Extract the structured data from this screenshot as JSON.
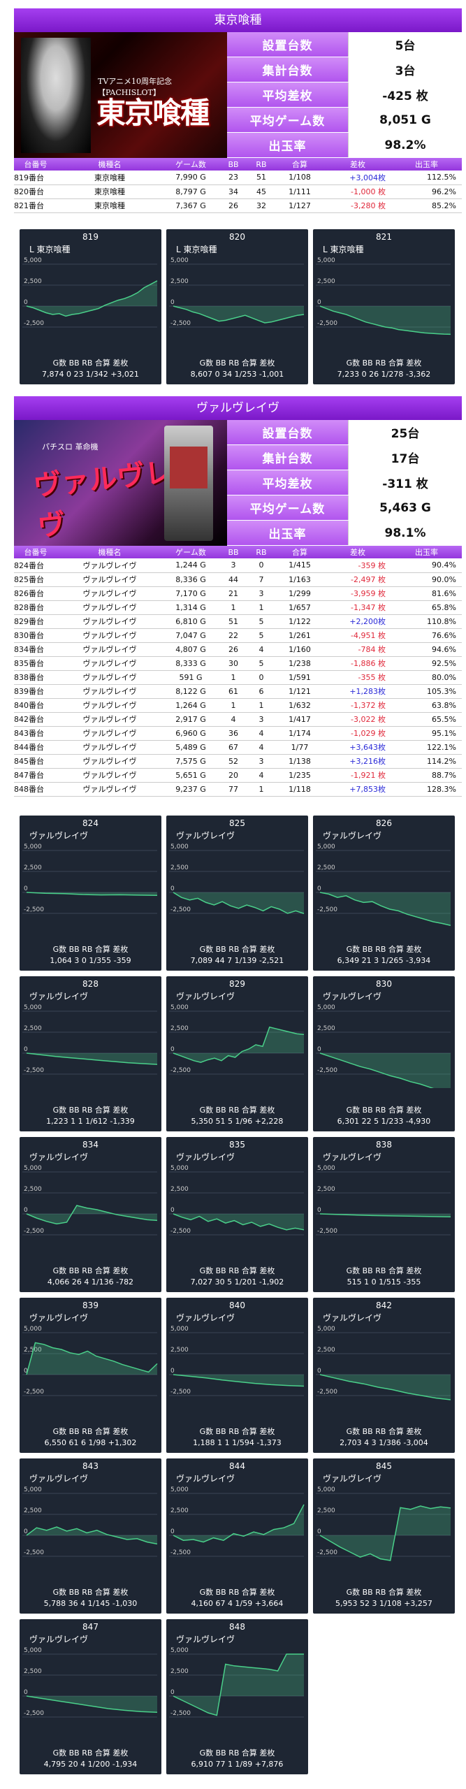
{
  "sections": [
    {
      "title": "東京喰種",
      "banner_caption": "TVアニメ10周年記念 【PACHISLOT】",
      "banner_logo": "東京喰種",
      "stats": [
        {
          "label": "設置台数",
          "value": "5台"
        },
        {
          "label": "集計台数",
          "value": "3台"
        },
        {
          "label": "平均差枚",
          "value": "-425 枚"
        },
        {
          "label": "平均ゲーム数",
          "value": "8,051 G"
        },
        {
          "label": "出玉率",
          "value": "98.2%"
        }
      ],
      "columns": [
        "台番号",
        "機種名",
        "ゲーム数",
        "BB",
        "RB",
        "合算",
        "差枚",
        "出玉率"
      ],
      "rows": [
        [
          "819番台",
          "東京喰種",
          "7,990 G",
          "23",
          "51",
          "1/108",
          "+3,004枚",
          "112.5%"
        ],
        [
          "820番台",
          "東京喰種",
          "8,797 G",
          "34",
          "45",
          "1/111",
          "-1,000 枚",
          "96.2%"
        ],
        [
          "821番台",
          "東京喰種",
          "7,367 G",
          "26",
          "32",
          "1/127",
          "-3,280 枚",
          "85.2%"
        ]
      ],
      "cards": [
        {
          "num": "819",
          "name": "L 東京喰種",
          "foot1": "G数  BB  RB   合算    差枚",
          "foot2": "7,874  0  23 1/342 +3,021",
          "series": [
            0,
            -200,
            -500,
            -800,
            -1000,
            -900,
            -1200,
            -1000,
            -900,
            -700,
            -500,
            -300,
            100,
            400,
            700,
            900,
            1200,
            1600,
            2200,
            2600,
            3021
          ]
        },
        {
          "num": "820",
          "name": "L 東京喰種",
          "foot1": "G数  BB  RB   合算    差枚",
          "foot2": "8,607  0  34 1/253 -1,001",
          "series": [
            0,
            -200,
            -400,
            -700,
            -900,
            -1200,
            -1500,
            -1800,
            -1700,
            -1500,
            -1300,
            -1100,
            -1400,
            -1700,
            -2000,
            -1900,
            -1700,
            -1500,
            -1300,
            -1100,
            -1001
          ]
        },
        {
          "num": "821",
          "name": "L 東京喰種",
          "foot1": "G数  BB  RB   合算    差枚",
          "foot2": "7,233  0  26 1/278 -3,362",
          "series": [
            0,
            -300,
            -600,
            -800,
            -1000,
            -1300,
            -1600,
            -1900,
            -2100,
            -2300,
            -2500,
            -2600,
            -2800,
            -2900,
            -3000,
            -3100,
            -3200,
            -3250,
            -3300,
            -3340,
            -3362
          ]
        }
      ]
    },
    {
      "title": "ヴァルヴレイヴ",
      "banner_caption": "パチスロ 革命機",
      "banner_logo": "ヴァルヴレイヴ",
      "stats": [
        {
          "label": "設置台数",
          "value": "25台"
        },
        {
          "label": "集計台数",
          "value": "17台"
        },
        {
          "label": "平均差枚",
          "value": "-311 枚"
        },
        {
          "label": "平均ゲーム数",
          "value": "5,463 G"
        },
        {
          "label": "出玉率",
          "value": "98.1%"
        }
      ],
      "columns": [
        "台番号",
        "機種名",
        "ゲーム数",
        "BB",
        "RB",
        "合算",
        "差枚",
        "出玉率"
      ],
      "rows": [
        [
          "824番台",
          "ヴァルヴレイヴ",
          "1,244 G",
          "3",
          "0",
          "1/415",
          "-359 枚",
          "90.4%"
        ],
        [
          "825番台",
          "ヴァルヴレイヴ",
          "8,336 G",
          "44",
          "7",
          "1/163",
          "-2,497 枚",
          "90.0%"
        ],
        [
          "826番台",
          "ヴァルヴレイヴ",
          "7,170 G",
          "21",
          "3",
          "1/299",
          "-3,959 枚",
          "81.6%"
        ],
        [
          "828番台",
          "ヴァルヴレイヴ",
          "1,314 G",
          "1",
          "1",
          "1/657",
          "-1,347 枚",
          "65.8%"
        ],
        [
          "829番台",
          "ヴァルヴレイヴ",
          "6,810 G",
          "51",
          "5",
          "1/122",
          "+2,200枚",
          "110.8%"
        ],
        [
          "830番台",
          "ヴァルヴレイヴ",
          "7,047 G",
          "22",
          "5",
          "1/261",
          "-4,951 枚",
          "76.6%"
        ],
        [
          "834番台",
          "ヴァルヴレイヴ",
          "4,807 G",
          "26",
          "4",
          "1/160",
          "-784 枚",
          "94.6%"
        ],
        [
          "835番台",
          "ヴァルヴレイヴ",
          "8,333 G",
          "30",
          "5",
          "1/238",
          "-1,886 枚",
          "92.5%"
        ],
        [
          "838番台",
          "ヴァルヴレイヴ",
          "591 G",
          "1",
          "0",
          "1/591",
          "-355 枚",
          "80.0%"
        ],
        [
          "839番台",
          "ヴァルヴレイヴ",
          "8,122 G",
          "61",
          "6",
          "1/121",
          "+1,283枚",
          "105.3%"
        ],
        [
          "840番台",
          "ヴァルヴレイヴ",
          "1,264 G",
          "1",
          "1",
          "1/632",
          "-1,372 枚",
          "63.8%"
        ],
        [
          "842番台",
          "ヴァルヴレイヴ",
          "2,917 G",
          "4",
          "3",
          "1/417",
          "-3,022 枚",
          "65.5%"
        ],
        [
          "843番台",
          "ヴァルヴレイヴ",
          "6,960 G",
          "36",
          "4",
          "1/174",
          "-1,029 枚",
          "95.1%"
        ],
        [
          "844番台",
          "ヴァルヴレイヴ",
          "5,489 G",
          "67",
          "4",
          "1/77",
          "+3,643枚",
          "122.1%"
        ],
        [
          "845番台",
          "ヴァルヴレイヴ",
          "7,575 G",
          "52",
          "3",
          "1/138",
          "+3,216枚",
          "114.2%"
        ],
        [
          "847番台",
          "ヴァルヴレイヴ",
          "5,651 G",
          "20",
          "4",
          "1/235",
          "-1,921 枚",
          "88.7%"
        ],
        [
          "848番台",
          "ヴァルヴレイヴ",
          "9,237 G",
          "77",
          "1",
          "1/118",
          "+7,853枚",
          "128.3%"
        ]
      ],
      "cards": [
        {
          "num": "824",
          "name": "ヴァルヴレイヴ",
          "foot1": "G数  BB  RB   合算    差枚",
          "foot2": "1,064  3  0 1/355 -359",
          "series": [
            0,
            -100,
            -150,
            -250,
            -300,
            -280,
            -320,
            -359
          ]
        },
        {
          "num": "825",
          "name": "ヴァルヴレイヴ",
          "foot1": "G数  BB  RB   合算    差枚",
          "foot2": "7,089  44  7 1/139 -2,521",
          "series": [
            0,
            -600,
            -900,
            -700,
            -1200,
            -1500,
            -1100,
            -1600,
            -1900,
            -1500,
            -1800,
            -2200,
            -1700,
            -2000,
            -2500,
            -2200,
            -2521
          ]
        },
        {
          "num": "826",
          "name": "ヴァルヴレイヴ",
          "foot1": "G数  BB  RB   合算    差枚",
          "foot2": "6,349  21  3 1/265 -3,934",
          "series": [
            0,
            -200,
            -600,
            -400,
            -900,
            -1200,
            -1100,
            -1600,
            -2000,
            -2200,
            -2600,
            -2900,
            -3200,
            -3500,
            -3700,
            -3934
          ]
        },
        {
          "num": "828",
          "name": "ヴァルヴレイヴ",
          "foot1": "G数  BB  RB   合算    差枚",
          "foot2": "1,223  1  1 1/612 -1,339",
          "series": [
            0,
            -200,
            -400,
            -550,
            -700,
            -850,
            -1000,
            -1150,
            -1250,
            -1339
          ]
        },
        {
          "num": "829",
          "name": "ヴァルヴレイヴ",
          "foot1": "G数  BB  RB   合算    差枚",
          "foot2": "5,350  51  5 1/96 +2,228",
          "series": [
            0,
            -300,
            -600,
            -900,
            -1100,
            -800,
            -600,
            -900,
            -300,
            -500,
            200,
            500,
            1000,
            800,
            3100,
            2900,
            2700,
            2500,
            2300,
            2228
          ]
        },
        {
          "num": "830",
          "name": "ヴァルヴレイヴ",
          "foot1": "G数  BB  RB   合算    差枚",
          "foot2": "6,301  22  5 1/233 -4,930",
          "series": [
            0,
            -400,
            -800,
            -1200,
            -1600,
            -1900,
            -2300,
            -2700,
            -3000,
            -3400,
            -3700,
            -4100,
            -4500,
            -4930
          ]
        },
        {
          "num": "834",
          "name": "ヴァルヴレイヴ",
          "foot1": "G数  BB  RB   合算    差枚",
          "foot2": "4,066  26  4 1/136 -782",
          "series": [
            0,
            -500,
            -900,
            -1200,
            -1000,
            1000,
            700,
            500,
            200,
            -100,
            -300,
            -500,
            -700,
            -782
          ]
        },
        {
          "num": "835",
          "name": "ヴァルヴレイヴ",
          "foot1": "G数  BB  RB   合算    差枚",
          "foot2": "7,027  30  5 1/201 -1,902",
          "series": [
            0,
            -400,
            -700,
            -300,
            -900,
            -600,
            -1100,
            -800,
            -1300,
            -1000,
            -1500,
            -1200,
            -1600,
            -1900,
            -1700,
            -1902
          ]
        },
        {
          "num": "838",
          "name": "ヴァルヴレイヴ",
          "foot1": "G数  BB  RB   合算    差枚",
          "foot2": "515  1  0 1/515 -355",
          "series": [
            0,
            -100,
            -200,
            -250,
            -300,
            -355
          ]
        },
        {
          "num": "839",
          "name": "ヴァルヴレイヴ",
          "foot1": "G数  BB  RB   合算    差枚",
          "foot2": "6,550  61  6 1/98 +1,302",
          "series": [
            0,
            3800,
            3600,
            3200,
            3000,
            2600,
            2400,
            2800,
            2200,
            1900,
            1600,
            1200,
            900,
            600,
            300,
            1302
          ]
        },
        {
          "num": "840",
          "name": "ヴァルヴレイヴ",
          "foot1": "G数  BB  RB   合算    差枚",
          "foot2": "1,188  1  1 1/594 -1,373",
          "series": [
            0,
            -200,
            -400,
            -650,
            -850,
            -1050,
            -1200,
            -1300,
            -1373
          ]
        },
        {
          "num": "842",
          "name": "ヴァルヴレイヴ",
          "foot1": "G数  BB  RB   合算    差枚",
          "foot2": "2,703  4  3 1/386 -3,004",
          "series": [
            0,
            -400,
            -800,
            -1100,
            -1500,
            -1800,
            -2200,
            -2500,
            -2800,
            -3004
          ]
        },
        {
          "num": "843",
          "name": "ヴァルヴレイヴ",
          "foot1": "G数  BB  RB   合算    差枚",
          "foot2": "5,788  36  4 1/145 -1,030",
          "series": [
            0,
            900,
            600,
            1000,
            500,
            800,
            300,
            600,
            100,
            -200,
            -500,
            -400,
            -800,
            -1030
          ]
        },
        {
          "num": "844",
          "name": "ヴァルヴレイヴ",
          "foot1": "G数  BB  RB   合算    差枚",
          "foot2": "4,160  67  4 1/59 +3,664",
          "series": [
            0,
            -600,
            -500,
            -800,
            -300,
            -600,
            200,
            -100,
            400,
            100,
            700,
            900,
            1400,
            3664
          ]
        },
        {
          "num": "845",
          "name": "ヴァルヴレイヴ",
          "foot1": "G数  BB  RB   合算    差枚",
          "foot2": "5,953  52  3 1/108 +3,257",
          "series": [
            0,
            -700,
            -1400,
            -2000,
            -2600,
            -2200,
            -2800,
            -3000,
            3300,
            3100,
            3500,
            3200,
            3400,
            3257
          ]
        },
        {
          "num": "847",
          "name": "ヴァルヴレイヴ",
          "foot1": "G数  BB  RB   合算    差枚",
          "foot2": "4,795  20  4 1/200 -1,934",
          "series": [
            0,
            -300,
            -600,
            -900,
            -1200,
            -1500,
            -1700,
            -1850,
            -1934
          ]
        },
        {
          "num": "848",
          "name": "ヴァルヴレイヴ",
          "foot1": "G数  BB  RB   合算    差枚",
          "foot2": "6,910  77  1 1/89 +7,876",
          "series": [
            0,
            -500,
            -1000,
            -1500,
            -2000,
            -2300,
            3800,
            3600,
            3500,
            3400,
            3300,
            3200,
            3000,
            5000,
            5000,
            5000
          ]
        }
      ]
    }
  ],
  "axis_labels": [
    "5,000",
    "2,500",
    "0",
    "-2,500"
  ]
}
